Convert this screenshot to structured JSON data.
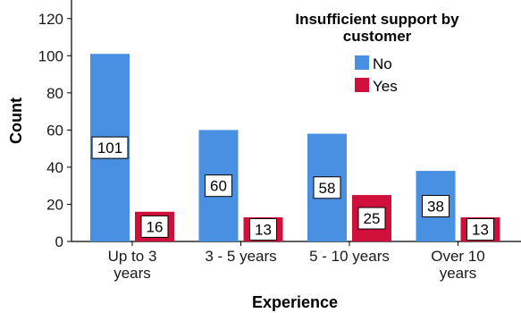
{
  "chart_data": {
    "type": "bar",
    "title": "",
    "xlabel": "Experience",
    "ylabel": "Count",
    "ylim": [
      0,
      130
    ],
    "yticks": [
      0,
      20,
      40,
      60,
      80,
      100,
      120
    ],
    "grid": false,
    "legend_position": "top-right",
    "legend_title": [
      "Insufficient support by",
      "customer"
    ],
    "categories": [
      [
        "Up to 3",
        "years"
      ],
      [
        "3 - 5 years"
      ],
      [
        "5 - 10 years"
      ],
      [
        "Over 10",
        "years"
      ]
    ],
    "series": [
      {
        "name": "No",
        "color": "#4a90e2",
        "values": [
          101,
          60,
          58,
          38
        ]
      },
      {
        "name": "Yes",
        "color": "#d0103a",
        "values": [
          16,
          13,
          25,
          13
        ]
      }
    ]
  }
}
